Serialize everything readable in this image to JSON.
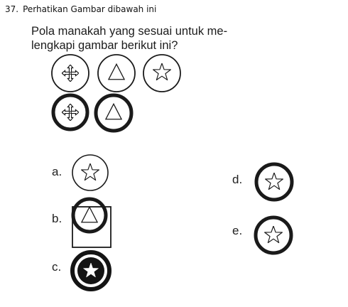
{
  "question": {
    "number": "37.",
    "instruction": "Perhatikan Gambar dibawah ini",
    "prompt_line1": "Pola manakah yang sesuai untuk me-",
    "prompt_line2": "lengkapi gambar berikut ini?"
  },
  "pattern": {
    "row1": [
      {
        "symbol": "cross-arrows-icon",
        "ring": "thin"
      },
      {
        "symbol": "triangle-icon",
        "ring": "thin"
      },
      {
        "symbol": "star-icon",
        "ring": "thin"
      }
    ],
    "row2": [
      {
        "symbol": "cross-arrows-icon",
        "ring": "thick"
      },
      {
        "symbol": "triangle-icon",
        "ring": "thick"
      }
    ]
  },
  "options": [
    {
      "label": "a.",
      "symbol": "star-icon",
      "ring": "thin"
    },
    {
      "label": "b.",
      "symbol": "triangle-icon",
      "ring": "thick",
      "frame": "square"
    },
    {
      "label": "c.",
      "symbol": "star-icon",
      "ring": "filled"
    },
    {
      "label": "d.",
      "symbol": "star-icon",
      "ring": "thick"
    },
    {
      "label": "e.",
      "symbol": "star-icon",
      "ring": "thick"
    }
  ],
  "colors": {
    "ink": "#1a1a1a",
    "paper": "#ffffff",
    "fill": "#141414"
  }
}
